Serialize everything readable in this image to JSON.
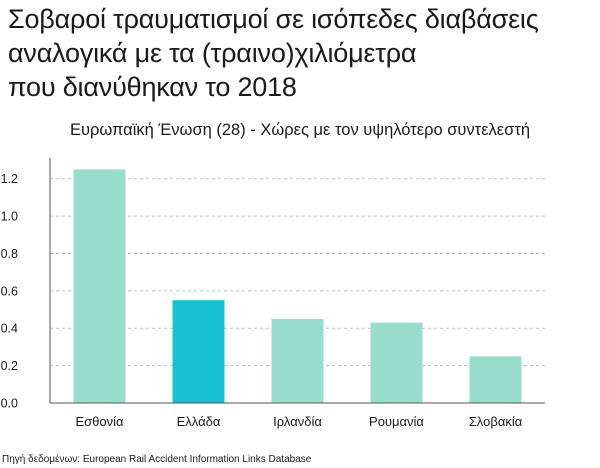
{
  "title_lines": [
    "Σοβαροί τραυματισμοί σε ισόπεδες διαβάσεις",
    "αναλογικά με τα (τραινο)χιλιόμετρα",
    "που διανύθηκαν το 2018"
  ],
  "subtitle": "Ευρωπαϊκή Ένωση (28) - Χώρες με τον υψηλότερο συντελεστή",
  "source": "Πηγή δεδομένων: European Rail Accident Information Links Database",
  "colors": {
    "bar_default": "#98dccc",
    "bar_highlight": "#18c1d2",
    "grid": "#bdbdbd",
    "axis": "#555555"
  },
  "chart_data": {
    "type": "bar",
    "categories": [
      "Εσθονία",
      "Ελλάδα",
      "Ιρλανδία",
      "Ρουμανία",
      "Σλοβακία"
    ],
    "values": [
      1.25,
      0.55,
      0.45,
      0.43,
      0.25
    ],
    "highlight": "Ελλάδα",
    "title": "Σοβαροί τραυματισμοί σε ισόπεδες διαβάσεις αναλογικά με τα (τραινο)χιλιόμετρα που διανύθηκαν το 2018",
    "subtitle": "Ευρωπαϊκή Ένωση (28) - Χώρες με τον υψηλότερο συντελεστή",
    "xlabel": "",
    "ylabel": "",
    "ylim": [
      0,
      1.3
    ],
    "yticks": [
      "0.0",
      "0.2",
      "0.4",
      "0.6",
      "0.8",
      "1.0",
      "1.2"
    ],
    "grid": true,
    "legend": "none"
  }
}
